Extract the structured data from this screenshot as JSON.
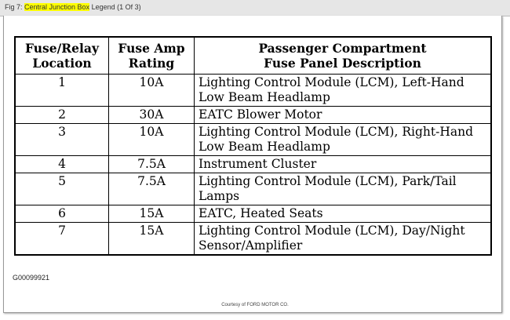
{
  "title": {
    "prefix": "Fig 7: ",
    "highlight": "Central Junction Box",
    "suffix": " Legend (1 Of 3)"
  },
  "table": {
    "headers": [
      "Fuse/Relay Location",
      "Fuse Amp Rating",
      "Passenger Compartment Fuse Panel Description"
    ],
    "header_lines": [
      [
        "Fuse/Relay",
        "Location"
      ],
      [
        "Fuse Amp",
        "Rating"
      ],
      [
        "Passenger Compartment",
        "Fuse Panel Description"
      ]
    ],
    "rows": [
      {
        "location": "1",
        "rating": "10A",
        "description": "Lighting Control Module (LCM), Left-Hand Low Beam Headlamp"
      },
      {
        "location": "2",
        "rating": "30A",
        "description": "EATC Blower Motor"
      },
      {
        "location": "3",
        "rating": "10A",
        "description": "Lighting Control Module (LCM), Right-Hand Low Beam Headlamp"
      },
      {
        "location": "4",
        "rating": "7.5A",
        "description": "Instrument Cluster"
      },
      {
        "location": "5",
        "rating": "7.5A",
        "description": "Lighting Control Module (LCM), Park/Tail Lamps"
      },
      {
        "location": "6",
        "rating": "15A",
        "description": "EATC, Heated Seats"
      },
      {
        "location": "7",
        "rating": "15A",
        "description": "Lighting Control Module (LCM), Day/Night Sensor/Amplifier"
      }
    ]
  },
  "figure_code": "G00099921",
  "courtesy": "Courtesy of FORD MOTOR CO."
}
